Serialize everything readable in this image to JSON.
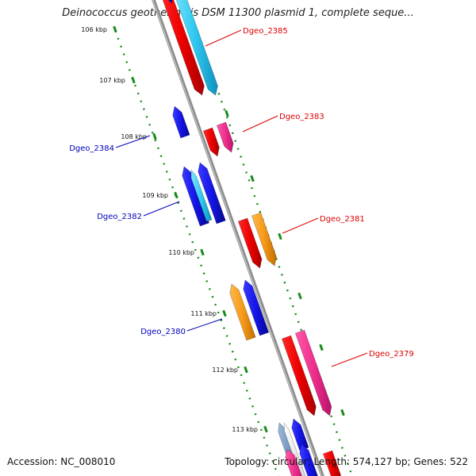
{
  "title": "Deinococcus geothermalis DSM 11300 plasmid 1, complete seque...",
  "accession": "Accession: NC_008010",
  "summary": "Topology: circular; Length: 574,127 bp; Genes: 522",
  "colors": {
    "backbone": "#8c8c8c",
    "tick": "#1a8a1a",
    "forward_label": "#dd0000",
    "reverse_label": "#0000bb"
  },
  "ticks": [
    "106 kbp",
    "107 kbp",
    "108 kbp",
    "109 kbp",
    "110 kbp",
    "111 kbp",
    "112 kbp",
    "113 kbp"
  ],
  "gene_labels": [
    {
      "name": "Dgeo_2385",
      "strand": "forward"
    },
    {
      "name": "Dgeo_2383",
      "strand": "forward"
    },
    {
      "name": "Dgeo_2384",
      "strand": "reverse"
    },
    {
      "name": "Dgeo_2382",
      "strand": "reverse"
    },
    {
      "name": "Dgeo_2381",
      "strand": "forward"
    },
    {
      "name": "Dgeo_2380",
      "strand": "reverse"
    },
    {
      "name": "Dgeo_2379",
      "strand": "forward"
    }
  ]
}
